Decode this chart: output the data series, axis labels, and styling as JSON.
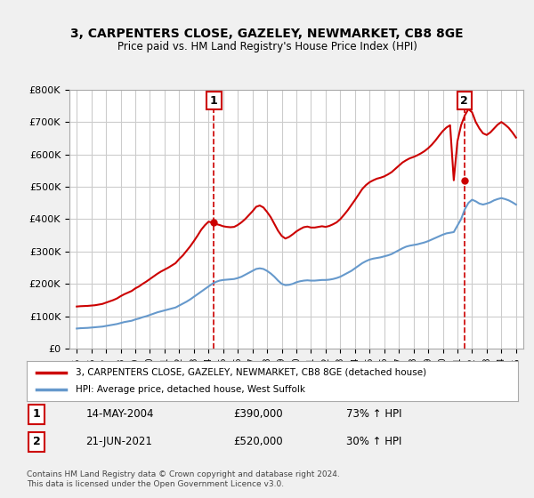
{
  "title": "3, CARPENTERS CLOSE, GAZELEY, NEWMARKET, CB8 8GE",
  "subtitle": "Price paid vs. HM Land Registry's House Price Index (HPI)",
  "legend_line1": "3, CARPENTERS CLOSE, GAZELEY, NEWMARKET, CB8 8GE (detached house)",
  "legend_line2": "HPI: Average price, detached house, West Suffolk",
  "transaction1_label": "1",
  "transaction1_date": "14-MAY-2004",
  "transaction1_price": "£390,000",
  "transaction1_hpi": "73% ↑ HPI",
  "transaction1_year": 2004.37,
  "transaction1_value": 390000,
  "transaction2_label": "2",
  "transaction2_date": "21-JUN-2021",
  "transaction2_price": "£520,000",
  "transaction2_hpi": "30% ↑ HPI",
  "transaction2_year": 2021.47,
  "transaction2_value": 520000,
  "footer": "Contains HM Land Registry data © Crown copyright and database right 2024.\nThis data is licensed under the Open Government Licence v3.0.",
  "ylim": [
    0,
    800000
  ],
  "xlim": [
    1994.5,
    2025.5
  ],
  "red_color": "#cc0000",
  "blue_color": "#6699cc",
  "background_color": "#f0f0f0",
  "plot_background": "#ffffff",
  "hpi_years": [
    1995,
    1995.25,
    1995.5,
    1995.75,
    1996,
    1996.25,
    1996.5,
    1996.75,
    1997,
    1997.25,
    1997.5,
    1997.75,
    1998,
    1998.25,
    1998.5,
    1998.75,
    1999,
    1999.25,
    1999.5,
    1999.75,
    2000,
    2000.25,
    2000.5,
    2000.75,
    2001,
    2001.25,
    2001.5,
    2001.75,
    2002,
    2002.25,
    2002.5,
    2002.75,
    2003,
    2003.25,
    2003.5,
    2003.75,
    2004,
    2004.25,
    2004.5,
    2004.75,
    2005,
    2005.25,
    2005.5,
    2005.75,
    2006,
    2006.25,
    2006.5,
    2006.75,
    2007,
    2007.25,
    2007.5,
    2007.75,
    2008,
    2008.25,
    2008.5,
    2008.75,
    2009,
    2009.25,
    2009.5,
    2009.75,
    2010,
    2010.25,
    2010.5,
    2010.75,
    2011,
    2011.25,
    2011.5,
    2011.75,
    2012,
    2012.25,
    2012.5,
    2012.75,
    2013,
    2013.25,
    2013.5,
    2013.75,
    2014,
    2014.25,
    2014.5,
    2014.75,
    2015,
    2015.25,
    2015.5,
    2015.75,
    2016,
    2016.25,
    2016.5,
    2016.75,
    2017,
    2017.25,
    2017.5,
    2017.75,
    2018,
    2018.25,
    2018.5,
    2018.75,
    2019,
    2019.25,
    2019.5,
    2019.75,
    2020,
    2020.25,
    2020.5,
    2020.75,
    2021,
    2021.25,
    2021.5,
    2021.75,
    2022,
    2022.25,
    2022.5,
    2022.75,
    2023,
    2023.25,
    2023.5,
    2023.75,
    2024,
    2024.25,
    2024.5,
    2024.75,
    2025
  ],
  "hpi_values": [
    62000,
    63000,
    63500,
    64000,
    65000,
    66000,
    67000,
    68000,
    70000,
    72000,
    74000,
    76000,
    79000,
    82000,
    84000,
    86000,
    90000,
    93000,
    97000,
    100000,
    104000,
    108000,
    112000,
    115000,
    118000,
    121000,
    124000,
    127000,
    133000,
    139000,
    145000,
    152000,
    160000,
    168000,
    176000,
    184000,
    192000,
    200000,
    206000,
    210000,
    212000,
    213000,
    214000,
    215000,
    218000,
    222000,
    228000,
    234000,
    240000,
    246000,
    248000,
    246000,
    240000,
    232000,
    222000,
    210000,
    200000,
    196000,
    197000,
    200000,
    205000,
    208000,
    210000,
    211000,
    210000,
    210000,
    211000,
    212000,
    212000,
    213000,
    215000,
    218000,
    222000,
    228000,
    234000,
    240000,
    248000,
    256000,
    264000,
    270000,
    275000,
    278000,
    280000,
    282000,
    285000,
    288000,
    292000,
    298000,
    304000,
    310000,
    315000,
    318000,
    320000,
    322000,
    325000,
    328000,
    332000,
    337000,
    342000,
    347000,
    352000,
    356000,
    358000,
    360000,
    380000,
    400000,
    430000,
    450000,
    460000,
    455000,
    448000,
    445000,
    448000,
    452000,
    458000,
    462000,
    465000,
    462000,
    458000,
    452000,
    445000
  ],
  "red_years": [
    1995,
    1995.25,
    1995.5,
    1995.75,
    1996,
    1996.25,
    1996.5,
    1996.75,
    1997,
    1997.25,
    1997.5,
    1997.75,
    1998,
    1998.25,
    1998.5,
    1998.75,
    1999,
    1999.25,
    1999.5,
    1999.75,
    2000,
    2000.25,
    2000.5,
    2000.75,
    2001,
    2001.25,
    2001.5,
    2001.75,
    2002,
    2002.25,
    2002.5,
    2002.75,
    2003,
    2003.25,
    2003.5,
    2003.75,
    2004,
    2004.25,
    2004.5,
    2004.75,
    2005,
    2005.25,
    2005.5,
    2005.75,
    2006,
    2006.25,
    2006.5,
    2006.75,
    2007,
    2007.25,
    2007.5,
    2007.75,
    2008,
    2008.25,
    2008.5,
    2008.75,
    2009,
    2009.25,
    2009.5,
    2009.75,
    2010,
    2010.25,
    2010.5,
    2010.75,
    2011,
    2011.25,
    2011.5,
    2011.75,
    2012,
    2012.25,
    2012.5,
    2012.75,
    2013,
    2013.25,
    2013.5,
    2013.75,
    2014,
    2014.25,
    2014.5,
    2014.75,
    2015,
    2015.25,
    2015.5,
    2015.75,
    2016,
    2016.25,
    2016.5,
    2016.75,
    2017,
    2017.25,
    2017.5,
    2017.75,
    2018,
    2018.25,
    2018.5,
    2018.75,
    2019,
    2019.25,
    2019.5,
    2019.75,
    2020,
    2020.25,
    2020.5,
    2020.75,
    2021,
    2021.25,
    2021.5,
    2021.75,
    2022,
    2022.25,
    2022.5,
    2022.75,
    2023,
    2023.25,
    2023.5,
    2023.75,
    2024,
    2024.25,
    2024.5,
    2024.75,
    2025
  ],
  "red_values": [
    130000,
    131000,
    131500,
    132000,
    133000,
    134000,
    136000,
    138000,
    142000,
    146000,
    150000,
    155000,
    162000,
    168000,
    173000,
    178000,
    186000,
    192000,
    200000,
    207000,
    215000,
    223000,
    231000,
    238000,
    244000,
    250000,
    257000,
    264000,
    277000,
    288000,
    302000,
    316000,
    332000,
    349000,
    367000,
    381000,
    392000,
    390000,
    385000,
    382000,
    378000,
    376000,
    375000,
    376000,
    382000,
    390000,
    400000,
    412000,
    424000,
    438000,
    442000,
    436000,
    422000,
    406000,
    385000,
    364000,
    348000,
    340000,
    345000,
    353000,
    362000,
    369000,
    375000,
    377000,
    374000,
    374000,
    376000,
    378000,
    376000,
    379000,
    384000,
    390000,
    400000,
    413000,
    427000,
    443000,
    459000,
    476000,
    493000,
    505000,
    514000,
    520000,
    525000,
    528000,
    532000,
    538000,
    545000,
    555000,
    565000,
    575000,
    582000,
    588000,
    592000,
    597000,
    603000,
    610000,
    619000,
    630000,
    643000,
    658000,
    672000,
    683000,
    690000,
    520000,
    640000,
    690000,
    720000,
    740000,
    730000,
    700000,
    680000,
    665000,
    660000,
    668000,
    680000,
    692000,
    700000,
    692000,
    682000,
    668000,
    652000
  ]
}
